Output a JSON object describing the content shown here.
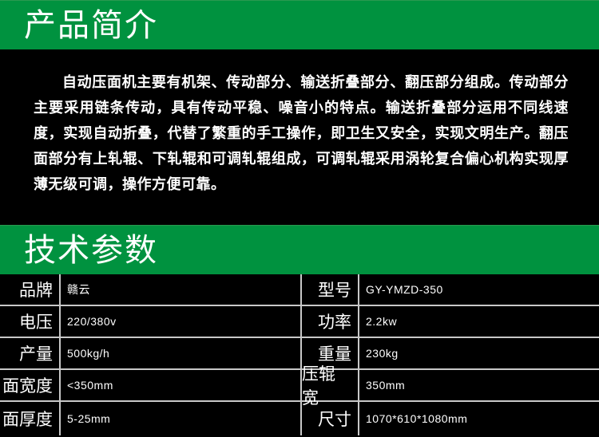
{
  "colors": {
    "accent": "#00923f",
    "background": "#000000",
    "divider": "#c8c8c8"
  },
  "intro": {
    "title": "产品简介",
    "text": "自动压面机主要有机架、传动部分、输送折叠部分、翻压部分组成。传动部分主要采用链条传动，具有传动平稳、噪音小的特点。输送折叠部分运用不同线速度，实现自动折叠，代替了繁重的手工操作，即卫生又安全，实现文明生产。翻压面部分有上轧辊、下轧辊和可调轧辊组成，可调轧辊采用涡轮复合偏心机构实现厚薄无级可调，操作方便可靠。"
  },
  "specs": {
    "title": "技术参数",
    "rows": [
      {
        "l1": "品牌",
        "v1": "赣云",
        "l2": "型号",
        "v2": "GY-YMZD-350"
      },
      {
        "l1": "电压",
        "v1": "220/380v",
        "l2": "功率",
        "v2": "2.2kw"
      },
      {
        "l1": "产量",
        "v1": "500kg/h",
        "l2": "重量",
        "v2": "230kg"
      },
      {
        "l1": "面宽度",
        "v1": "<350mm",
        "l2": "压辊宽",
        "v2": "350mm"
      },
      {
        "l1": "面厚度",
        "v1": "5-25mm",
        "l2": "尺寸",
        "v2": "1070*610*1080mm"
      }
    ]
  }
}
